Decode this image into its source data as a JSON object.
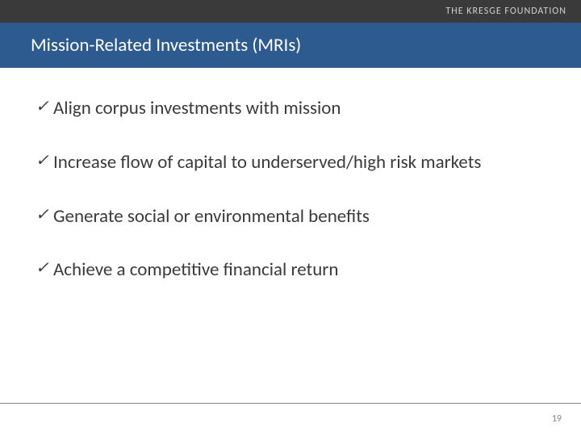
{
  "header": {
    "org_name": "THE KRESGE FOUNDATION"
  },
  "title": "Mission-Related Investments (MRIs)",
  "bullets": [
    "Align corpus investments with mission",
    "Increase flow of capital to underserved/high risk markets",
    "Generate social or environmental benefits",
    "Achieve a competitive financial return"
  ],
  "page_number": "19",
  "colors": {
    "top_bar_bg": "#3a3a3a",
    "title_bar_bg": "#2d5a8f",
    "title_text": "#ffffff",
    "body_text": "#3a3a3a",
    "footer_line": "#888888",
    "page_num": "#888888",
    "background": "#ffffff"
  }
}
